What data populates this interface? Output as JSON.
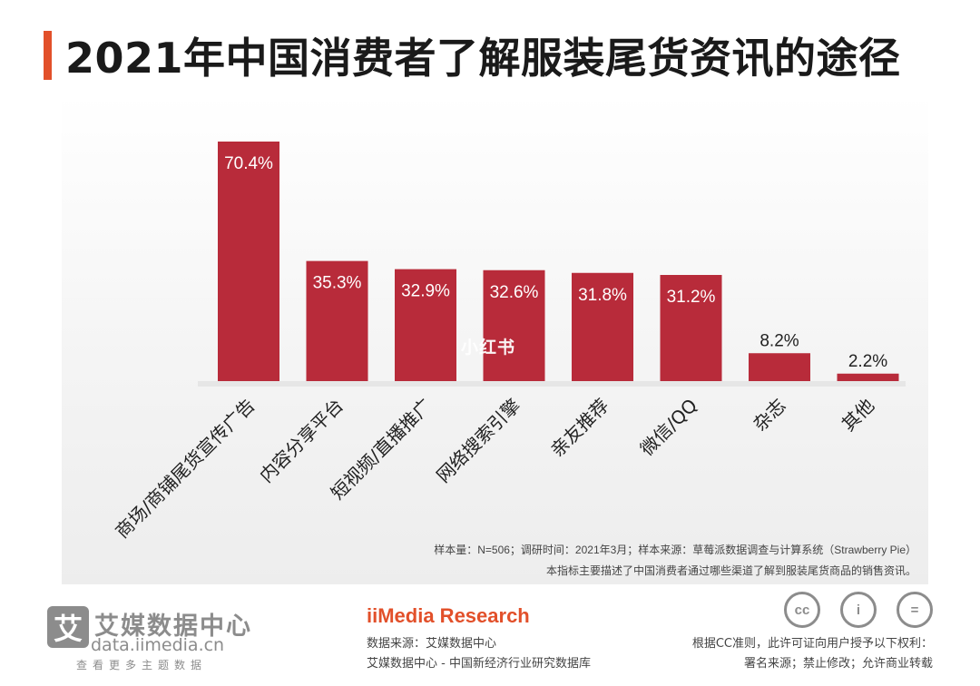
{
  "title": "2021年中国消费者了解服装尾货资讯的途径",
  "colors": {
    "bar": "#b82b3a",
    "accent": "#e2502a",
    "gray": "#8c8c8c"
  },
  "watermark": "小红书",
  "chart_data": {
    "type": "bar",
    "categories": [
      "商场/商铺尾货宣传广告",
      "内容分享平台",
      "短视频/直播推广",
      "网络搜索引擎",
      "亲友推荐",
      "微信/QQ",
      "杂志",
      "其他"
    ],
    "values": [
      70.4,
      35.3,
      32.9,
      32.6,
      31.8,
      31.2,
      8.2,
      2.2
    ],
    "data_labels": [
      "70.4%",
      "35.3%",
      "32.9%",
      "32.6%",
      "31.8%",
      "31.2%",
      "8.2%",
      "2.2%"
    ],
    "ylim": [
      0,
      72
    ],
    "grid": false,
    "legend": "none"
  },
  "notes": {
    "line1": "样本量：N=506；调研时间：2021年3月；样本来源：草莓派数据调查与计算系统（Strawberry Pie）",
    "line2": "本指标主要描述了中国消费者通过哪些渠道了解到服装尾货商品的销售资讯。"
  },
  "footer": {
    "logo_char": "艾",
    "logo_name": "艾媒数据中心",
    "logo_url": "data.iimedia.cn",
    "logo_sub": "查看更多主题数据",
    "brand": "iiMedia Research",
    "source1": "数据来源：艾媒数据中心",
    "source2": "艾媒数据中心 - 中国新经济行业研究数据库",
    "license1": "根据CC准则，此许可证向用户授予以下权利：",
    "license2": "署名来源；禁止修改；允许商业转载",
    "cc_icons": [
      {
        "name": "cc-icon",
        "glyph": "cc"
      },
      {
        "name": "attribution-icon",
        "glyph": "i"
      },
      {
        "name": "no-derivatives-icon",
        "glyph": "="
      }
    ]
  }
}
